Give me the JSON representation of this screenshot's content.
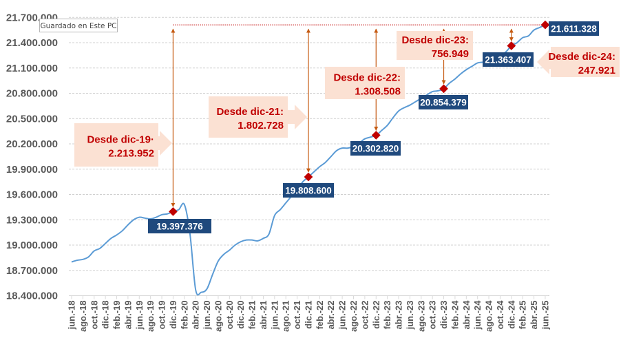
{
  "tooltip": "Guardado en Este PC",
  "colors": {
    "line": "#5B9BD5",
    "marker": "#C00000",
    "value_label_bg": "#1F497D",
    "callout_bg": "#FBE1D3",
    "callout_text": "#C00000",
    "arrow": "#C55A11",
    "reference_line": "#C00000",
    "grid": "#D0D0D0",
    "axis_text": "#595959"
  },
  "chart_data": {
    "type": "line",
    "title": "",
    "xlabel": "",
    "ylabel": "",
    "ylim": [
      18400000,
      21700000
    ],
    "yticks": [
      "18.400.000",
      "18.700.000",
      "19.000.000",
      "19.300.000",
      "19.600.000",
      "19.900.000",
      "20.200.000",
      "20.500.000",
      "20.800.000",
      "21.100.000",
      "21.400.000",
      "21.700.000"
    ],
    "ytick_values": [
      18400000,
      18700000,
      19000000,
      19300000,
      19600000,
      19900000,
      20200000,
      20500000,
      20800000,
      21100000,
      21400000,
      21700000
    ],
    "grid": "horizontal dashed",
    "x_start": "jun.-18",
    "x_end": "jun.-25",
    "xtick_labels": [
      "jun.-18",
      "ago.-18",
      "oct.-18",
      "dic.-18",
      "feb.-19",
      "abr.-19",
      "jun.-19",
      "ago.-19",
      "oct.-19",
      "dic.-19",
      "feb.-20",
      "abr.-20",
      "jun.-20",
      "ago.-20",
      "oct.-20",
      "dic.-20",
      "feb.-21",
      "abr.-21",
      "jun.-21",
      "ago.-21",
      "oct.-21",
      "dic.-21",
      "feb.-22",
      "abr.-22",
      "jun.-22",
      "ago.-22",
      "oct.-22",
      "dic.-22",
      "feb.-23",
      "abr.-23",
      "jun.-23",
      "ago.-23",
      "oct.-23",
      "dic.-23",
      "feb.-24",
      "abr.-24",
      "jun.-24",
      "ago.-24",
      "oct.-24",
      "dic.-24",
      "feb.-25",
      "abr.-25",
      "jun.-25"
    ],
    "values": [
      18800000,
      18820000,
      18830000,
      18860000,
      18930000,
      18960000,
      19020000,
      19080000,
      19120000,
      19170000,
      19240000,
      19300000,
      19330000,
      19320000,
      19310000,
      19330000,
      19360000,
      19370000,
      19397376,
      19420000,
      19480000,
      19130000,
      18470000,
      18440000,
      18480000,
      18650000,
      18810000,
      18890000,
      18940000,
      19000000,
      19040000,
      19060000,
      19060000,
      19050000,
      19080000,
      19130000,
      19350000,
      19420000,
      19500000,
      19580000,
      19660000,
      19750000,
      19808600,
      19870000,
      19930000,
      19980000,
      20050000,
      20120000,
      20150000,
      20150000,
      20170000,
      20210000,
      20260000,
      20280000,
      20302820,
      20360000,
      20420000,
      20510000,
      20590000,
      20630000,
      20660000,
      20700000,
      20740000,
      20780000,
      20820000,
      20830000,
      20854379,
      20920000,
      20970000,
      21030000,
      21080000,
      21120000,
      21160000,
      21170000,
      21190000,
      21210000,
      21250000,
      21290000,
      21363407,
      21400000,
      21460000,
      21480000,
      21550000,
      21580000,
      21611328
    ],
    "highlights": [
      {
        "month": "dic.-19",
        "value": 19397376,
        "label": "19.397.376",
        "callout": [
          "Desde dic-19·",
          "2.213.952"
        ]
      },
      {
        "month": "dic.-21",
        "value": 19808600,
        "label": "19.808.600",
        "callout": [
          "Desde dic-21:",
          "1.802.728"
        ]
      },
      {
        "month": "dic.-22",
        "value": 20302820,
        "label": "20.302.820",
        "callout": [
          "Desde dic-22:",
          "1.308.508"
        ]
      },
      {
        "month": "dic.-23",
        "value": 20854379,
        "label": "20.854.379",
        "callout": [
          "Desde dic-23:",
          "756.949"
        ]
      },
      {
        "month": "dic.-24",
        "value": 21363407,
        "label": "21.363.407",
        "callout": [
          "Desde dic-24:",
          "247.921"
        ]
      },
      {
        "month": "jun.-25",
        "value": 21611328,
        "label": "21.611.328",
        "callout": null
      }
    ],
    "reference_value": 21611328
  }
}
